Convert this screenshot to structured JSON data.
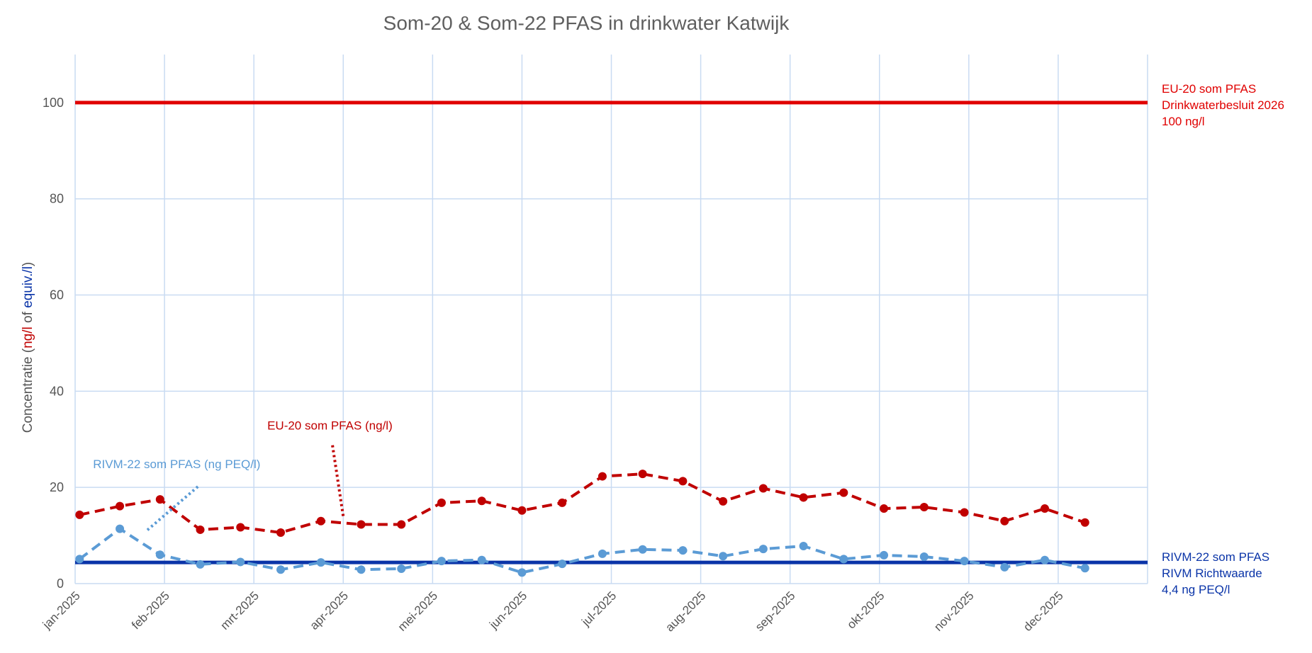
{
  "chart_data": {
    "type": "line",
    "title": "Som-20 & Som-22 PFAS in drinkwater Katwijk",
    "ylabel_parts": [
      {
        "text": "Concentratie (",
        "color": "#555555"
      },
      {
        "text": "ng/l",
        "color": "#c00000"
      },
      {
        "text": " of ",
        "color": "#555555"
      },
      {
        "text": "equiv./l",
        "color": "#0a34a8"
      },
      {
        "text": ")",
        "color": "#555555"
      }
    ],
    "ylim": [
      0,
      110
    ],
    "yticks": [
      0,
      20,
      40,
      60,
      80,
      100
    ],
    "xlim": [
      0,
      12
    ],
    "xticks": [
      {
        "x": 0,
        "label": "jan-2025"
      },
      {
        "x": 1,
        "label": "feb-2025"
      },
      {
        "x": 2,
        "label": "mrt-2025"
      },
      {
        "x": 3,
        "label": "apr-2025"
      },
      {
        "x": 4,
        "label": "mei-2025"
      },
      {
        "x": 5,
        "label": "jun-2025"
      },
      {
        "x": 6,
        "label": "jul-2025"
      },
      {
        "x": 7,
        "label": "aug-2025"
      },
      {
        "x": 8,
        "label": "sep-2025"
      },
      {
        "x": 9,
        "label": "okt-2025"
      },
      {
        "x": 10,
        "label": "nov-2025"
      },
      {
        "x": 11,
        "label": "dec-2025"
      }
    ],
    "grid": true,
    "series": [
      {
        "name": "EU-20 som PFAS (ng/l)",
        "color": "#c00000",
        "style": "dashed",
        "x": [
          0.05,
          0.5,
          0.95,
          1.4,
          1.85,
          2.3,
          2.75,
          3.2,
          3.65,
          4.1,
          4.55,
          5.0,
          5.45,
          5.9,
          6.35,
          6.8,
          7.25,
          7.7,
          8.15,
          8.6,
          9.05,
          9.5,
          9.95,
          10.4,
          10.85,
          11.3,
          11.75
        ],
        "values": [
          14.3,
          16.1,
          17.5,
          11.2,
          11.7,
          10.6,
          13.0,
          12.3,
          12.3,
          16.8,
          17.2,
          15.2,
          16.8,
          22.3,
          22.8,
          21.3,
          17.1,
          19.8,
          17.9,
          18.9,
          15.6,
          15.9,
          14.8,
          13.0,
          15.6,
          12.7,
          null
        ]
      },
      {
        "name": "RIVM-22 som PFAS (ng PEQ/l)",
        "color": "#5b9bd5",
        "style": "dashed",
        "x": [
          0.05,
          0.5,
          0.95,
          1.4,
          1.85,
          2.3,
          2.75,
          3.2,
          3.65,
          4.1,
          4.55,
          5.0,
          5.45,
          5.9,
          6.35,
          6.8,
          7.25,
          7.7,
          8.15,
          8.6,
          9.05,
          9.5,
          9.95,
          10.4,
          10.85,
          11.3,
          11.75
        ],
        "values": [
          5.1,
          11.4,
          6.0,
          4.0,
          4.5,
          2.9,
          4.4,
          2.9,
          3.1,
          4.7,
          4.9,
          2.3,
          4.1,
          6.2,
          7.1,
          6.9,
          5.7,
          7.2,
          7.8,
          5.1,
          5.9,
          5.6,
          4.7,
          3.4,
          4.9,
          3.2,
          null
        ]
      }
    ],
    "reference_lines": [
      {
        "name": "EU-20 som PFAS Drinkwaterbesluit 2026",
        "value": 100,
        "color": "#e00000",
        "labels": [
          "EU-20 som PFAS",
          "Drinkwaterbesluit 2026",
          "100 ng/l"
        ]
      },
      {
        "name": "RIVM-22 som PFAS RIVM Richtwaarde",
        "value": 4.4,
        "color": "#0a34a8",
        "labels": [
          "RIVM-22 som PFAS",
          "RIVM Richtwaarde",
          "4,4 ng PEQ/l"
        ]
      }
    ],
    "annotations": [
      {
        "text": "EU-20 som PFAS (ng/l)",
        "color": "#c00000",
        "x": 2.15,
        "y": 32.0,
        "pointer_to": {
          "x": 3.0,
          "y": 14.0
        }
      },
      {
        "text": "RIVM-22 som PFAS (ng PEQ/l)",
        "color": "#5b9bd5",
        "x": 0.2,
        "y": 24.0,
        "pointer_to": {
          "x": 0.8,
          "y": 11.0
        }
      }
    ]
  }
}
